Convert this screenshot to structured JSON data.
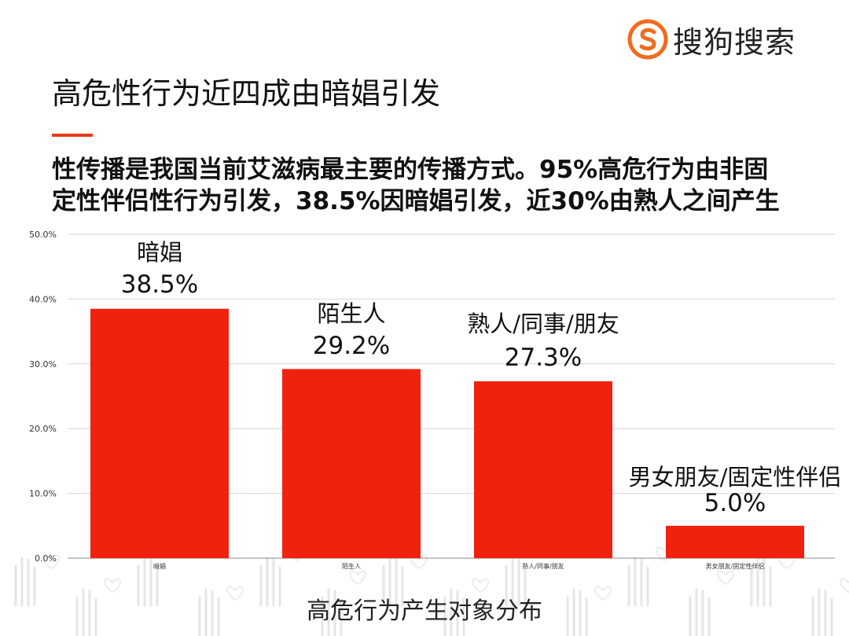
{
  "brand": {
    "name": "搜狗搜索",
    "accent_color": "#e8391a"
  },
  "header": {
    "title": "高危性行为近四成由暗娼引发"
  },
  "subtitle": {
    "line1": "性传播是我国当前艾滋病最主要的传播方式。95%高危行为由非固",
    "line2": "定性伴侣性行为引发，38.5%因暗娼引发，近30%由熟人之间产生"
  },
  "chart_data": {
    "type": "bar",
    "title": "",
    "xlabel": "高危行为产生对象分布",
    "ylabel": "",
    "ylim": [
      0,
      50
    ],
    "y_ticks": [
      "0.0%",
      "10.0%",
      "20.0%",
      "30.0%",
      "40.0%",
      "50.0%"
    ],
    "grid": true,
    "bar_color": "#f0220f",
    "categories": [
      "暗娼",
      "陌生人",
      "熟人/同事/朋友",
      "男女朋友/固定性伴侣"
    ],
    "values": [
      38.5,
      29.2,
      27.3,
      5.0
    ],
    "value_labels": [
      "38.5%",
      "29.2%",
      "27.3%",
      "5.0%"
    ],
    "annotations": [
      "暗娼",
      "陌生人",
      "熟人/同事/朋友",
      "男女朋友/固定性伴侣"
    ]
  }
}
